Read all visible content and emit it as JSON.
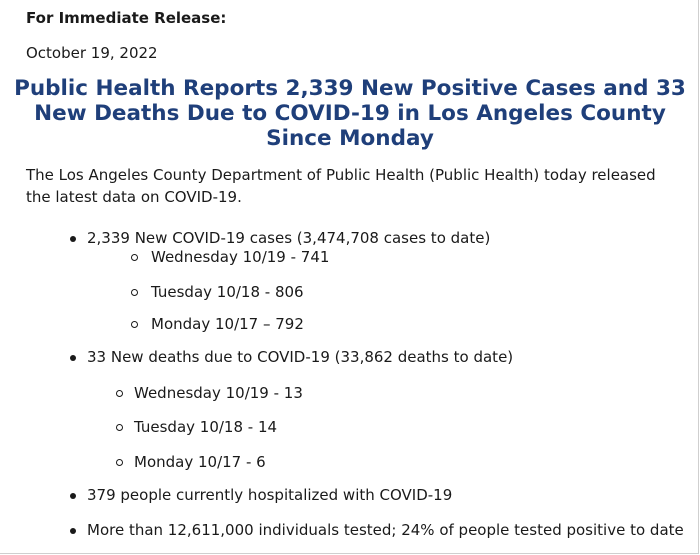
{
  "header": {
    "release": "For Immediate Release:",
    "date": "October 19, 2022"
  },
  "headline": "Public Health Reports 2,339 New Positive Cases and 33 New Deaths Due to COVID-19 in Los Angeles County Since Monday",
  "intro": "The Los Angeles County Department of Public Health (Public Health) today released the latest data on COVID-19.",
  "list": {
    "cases": {
      "label": "2,339 New COVID-19 cases (3,474,708 cases to date)",
      "sub": [
        "Wednesday 10/19 - 741",
        "Tuesday 10/18 - 806",
        "Monday 10/17 – 792"
      ]
    },
    "deaths": {
      "label": "33 New deaths due to COVID-19 (33,862 deaths to date)",
      "sub": [
        "Wednesday 10/19 - 13",
        "Tuesday 10/18 - 14",
        "Monday 10/17 - 6"
      ]
    },
    "hospitalized": "379 people currently hospitalized with COVID-19",
    "tested": "More than 12,611,000 individuals tested; 24% of people tested positive to date"
  }
}
